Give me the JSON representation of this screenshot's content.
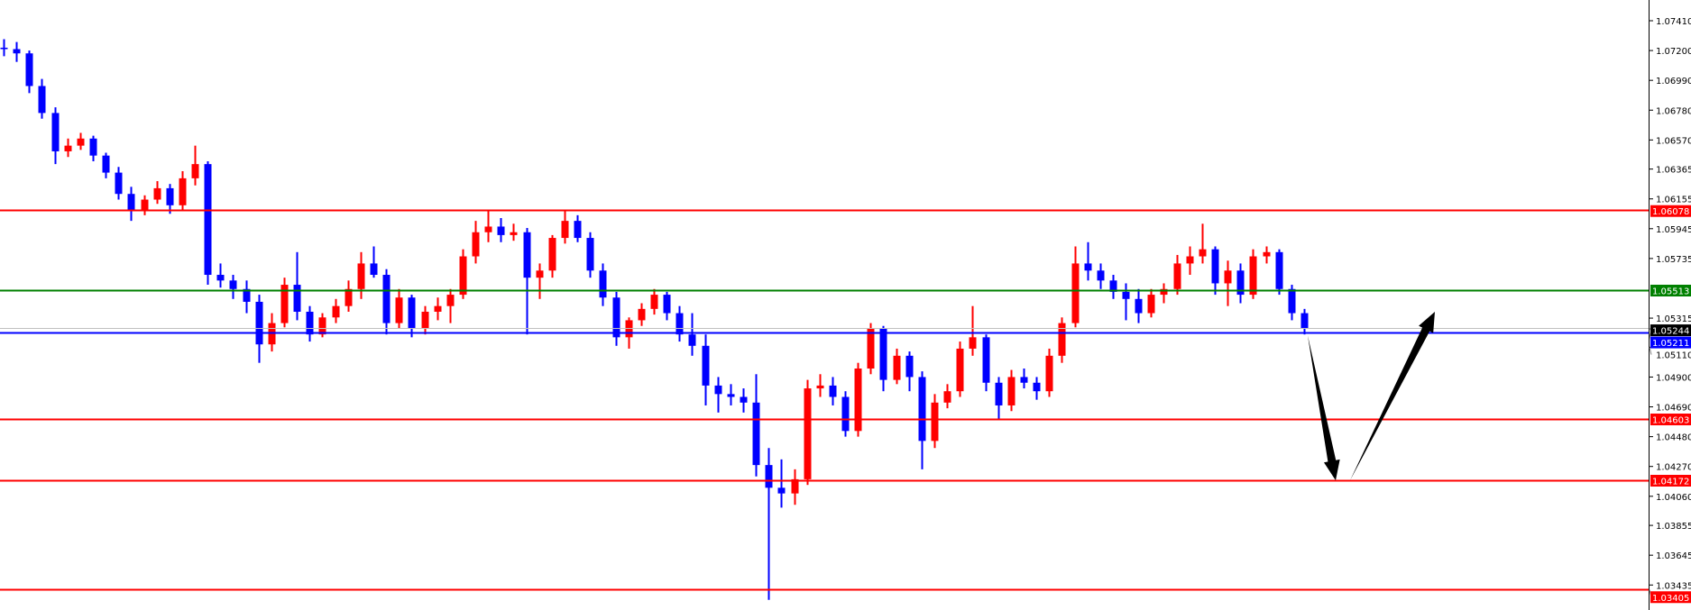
{
  "chart_data": {
    "type": "candlestick",
    "title": "",
    "ylim": [
      1.033,
      1.0756
    ],
    "y_ticks": [
      "1.07410",
      "1.07200",
      "1.06990",
      "1.06780",
      "1.06570",
      "1.06365",
      "1.06155",
      "1.05945",
      "1.05735",
      "1.05315",
      "1.05110",
      "1.04900",
      "1.04690",
      "1.04480",
      "1.04270",
      "1.04060",
      "1.03855",
      "1.03645",
      "1.03435"
    ],
    "up_color": "#ff0000",
    "down_color": "#0000ff",
    "grid": false,
    "levels": [
      {
        "price": 1.06078,
        "label": "1.06078",
        "color": "#ff0000"
      },
      {
        "price": 1.05513,
        "label": "1.05513",
        "color": "#008000"
      },
      {
        "price": 1.05244,
        "label": "1.05244",
        "color": "#c0c0c0",
        "label_bg": "#000000"
      },
      {
        "price": 1.05211,
        "label": "1.05211",
        "color": "#0000ff"
      },
      {
        "price": 1.04603,
        "label": "1.04603",
        "color": "#ff0000"
      },
      {
        "price": 1.04172,
        "label": "1.04172",
        "color": "#ff0000"
      },
      {
        "price": 1.03405,
        "label": "1.03405",
        "color": "#ff0000"
      }
    ],
    "arrows": [
      {
        "from_price": 1.05211,
        "to_price": 1.04172,
        "direction": "down",
        "color": "#000000"
      },
      {
        "from_price": 1.04172,
        "to_price": 1.0536,
        "direction": "up",
        "color": "#000000"
      }
    ],
    "candles": [
      [
        1.0722,
        1.0728,
        1.0716,
        1.0721
      ],
      [
        1.0721,
        1.0726,
        1.0712,
        1.0718
      ],
      [
        1.0718,
        1.072,
        1.069,
        1.0695
      ],
      [
        1.0695,
        1.07,
        1.0672,
        1.0676
      ],
      [
        1.0676,
        1.068,
        1.064,
        1.0649
      ],
      [
        1.0649,
        1.0658,
        1.0645,
        1.0653
      ],
      [
        1.0653,
        1.0662,
        1.065,
        1.0658
      ],
      [
        1.0658,
        1.066,
        1.0642,
        1.0646
      ],
      [
        1.0646,
        1.0648,
        1.063,
        1.0634
      ],
      [
        1.0634,
        1.0638,
        1.0615,
        1.0619
      ],
      [
        1.0619,
        1.0624,
        1.06,
        1.0608
      ],
      [
        1.0608,
        1.0618,
        1.0604,
        1.0615
      ],
      [
        1.0615,
        1.0628,
        1.0612,
        1.0623
      ],
      [
        1.0623,
        1.0626,
        1.0605,
        1.0611
      ],
      [
        1.0611,
        1.0635,
        1.0608,
        1.063
      ],
      [
        1.063,
        1.0653,
        1.0625,
        1.064
      ],
      [
        1.064,
        1.0642,
        1.0555,
        1.0562
      ],
      [
        1.0562,
        1.057,
        1.0553,
        1.0558
      ],
      [
        1.0558,
        1.0562,
        1.0545,
        1.0552
      ],
      [
        1.0552,
        1.0558,
        1.0535,
        1.0543
      ],
      [
        1.0543,
        1.0548,
        1.05,
        1.0513
      ],
      [
        1.0513,
        1.0535,
        1.0508,
        1.0528
      ],
      [
        1.0528,
        1.056,
        1.0525,
        1.0555
      ],
      [
        1.0555,
        1.0578,
        1.053,
        1.0536
      ],
      [
        1.0536,
        1.054,
        1.0515,
        1.052
      ],
      [
        1.052,
        1.0535,
        1.0518,
        1.0532
      ],
      [
        1.0532,
        1.0545,
        1.0528,
        1.054
      ],
      [
        1.054,
        1.0558,
        1.0536,
        1.0552
      ],
      [
        1.0552,
        1.0578,
        1.0545,
        1.057
      ],
      [
        1.057,
        1.0582,
        1.056,
        1.0562
      ],
      [
        1.0562,
        1.0566,
        1.052,
        1.0528
      ],
      [
        1.0528,
        1.0552,
        1.0524,
        1.0546
      ],
      [
        1.0546,
        1.0548,
        1.0518,
        1.0524
      ],
      [
        1.0524,
        1.054,
        1.052,
        1.0536
      ],
      [
        1.0536,
        1.0546,
        1.053,
        1.054
      ],
      [
        1.054,
        1.0552,
        1.0528,
        1.0548
      ],
      [
        1.0548,
        1.058,
        1.0545,
        1.0575
      ],
      [
        1.0575,
        1.06,
        1.057,
        1.0592
      ],
      [
        1.0592,
        1.0608,
        1.0585,
        1.0596
      ],
      [
        1.0596,
        1.0602,
        1.0585,
        1.059
      ],
      [
        1.059,
        1.0598,
        1.0586,
        1.0592
      ],
      [
        1.0592,
        1.0595,
        1.052,
        1.056
      ],
      [
        1.056,
        1.057,
        1.0545,
        1.0565
      ],
      [
        1.0565,
        1.059,
        1.056,
        1.0588
      ],
      [
        1.0588,
        1.0608,
        1.0584,
        1.06
      ],
      [
        1.06,
        1.0604,
        1.0585,
        1.0588
      ],
      [
        1.0588,
        1.0592,
        1.056,
        1.0565
      ],
      [
        1.0565,
        1.057,
        1.054,
        1.0546
      ],
      [
        1.0546,
        1.055,
        1.0512,
        1.0518
      ],
      [
        1.0518,
        1.0532,
        1.051,
        1.053
      ],
      [
        1.053,
        1.0542,
        1.0526,
        1.0538
      ],
      [
        1.0538,
        1.0552,
        1.0534,
        1.0548
      ],
      [
        1.0548,
        1.055,
        1.053,
        1.0535
      ],
      [
        1.0535,
        1.054,
        1.0515,
        1.052
      ],
      [
        1.052,
        1.0535,
        1.0505,
        1.0512
      ],
      [
        1.0512,
        1.052,
        1.047,
        1.0484
      ],
      [
        1.0484,
        1.049,
        1.0465,
        1.0478
      ],
      [
        1.0478,
        1.0485,
        1.047,
        1.0476
      ],
      [
        1.0476,
        1.0482,
        1.0465,
        1.0472
      ],
      [
        1.0472,
        1.0492,
        1.042,
        1.0428
      ],
      [
        1.0428,
        1.044,
        1.0333,
        1.0412
      ],
      [
        1.0412,
        1.0432,
        1.0398,
        1.0408
      ],
      [
        1.0408,
        1.0425,
        1.04,
        1.0418
      ],
      [
        1.0418,
        1.0488,
        1.0414,
        1.0482
      ],
      [
        1.0482,
        1.0492,
        1.0476,
        1.0484
      ],
      [
        1.0484,
        1.049,
        1.047,
        1.0476
      ],
      [
        1.0476,
        1.048,
        1.0448,
        1.0452
      ],
      [
        1.0452,
        1.05,
        1.0448,
        1.0496
      ],
      [
        1.0496,
        1.0528,
        1.0492,
        1.0524
      ],
      [
        1.0524,
        1.0526,
        1.048,
        1.0488
      ],
      [
        1.0488,
        1.051,
        1.0485,
        1.0505
      ],
      [
        1.0505,
        1.0508,
        1.048,
        1.049
      ],
      [
        1.049,
        1.0494,
        1.0425,
        1.0445
      ],
      [
        1.0445,
        1.0478,
        1.044,
        1.0472
      ],
      [
        1.0472,
        1.0485,
        1.0468,
        1.048
      ],
      [
        1.048,
        1.0515,
        1.0476,
        1.051
      ],
      [
        1.051,
        1.054,
        1.0505,
        1.0518
      ],
      [
        1.0518,
        1.052,
        1.048,
        1.0486
      ],
      [
        1.0486,
        1.049,
        1.046,
        1.047
      ],
      [
        1.047,
        1.0495,
        1.0466,
        1.049
      ],
      [
        1.049,
        1.0496,
        1.0482,
        1.0486
      ],
      [
        1.0486,
        1.049,
        1.0474,
        1.048
      ],
      [
        1.048,
        1.051,
        1.0476,
        1.0505
      ],
      [
        1.0505,
        1.0532,
        1.05,
        1.0528
      ],
      [
        1.0528,
        1.0582,
        1.0525,
        1.057
      ],
      [
        1.057,
        1.0585,
        1.0558,
        1.0565
      ],
      [
        1.0565,
        1.057,
        1.0552,
        1.0558
      ],
      [
        1.0558,
        1.0562,
        1.0545,
        1.055
      ],
      [
        1.055,
        1.0556,
        1.053,
        1.0545
      ],
      [
        1.0545,
        1.0552,
        1.0528,
        1.0535
      ],
      [
        1.0535,
        1.0552,
        1.0532,
        1.0548
      ],
      [
        1.0548,
        1.0556,
        1.0542,
        1.0552
      ],
      [
        1.0552,
        1.0576,
        1.0548,
        1.057
      ],
      [
        1.057,
        1.0582,
        1.0562,
        1.0575
      ],
      [
        1.0575,
        1.0598,
        1.057,
        1.058
      ],
      [
        1.058,
        1.0582,
        1.0548,
        1.0556
      ],
      [
        1.0556,
        1.0572,
        1.054,
        1.0565
      ],
      [
        1.0565,
        1.057,
        1.0542,
        1.0548
      ],
      [
        1.0548,
        1.058,
        1.0545,
        1.0575
      ],
      [
        1.0575,
        1.0582,
        1.057,
        1.0578
      ],
      [
        1.0578,
        1.058,
        1.0548,
        1.0552
      ],
      [
        1.0552,
        1.0555,
        1.053,
        1.0535
      ],
      [
        1.0535,
        1.0538,
        1.052,
        1.0524
      ]
    ]
  }
}
